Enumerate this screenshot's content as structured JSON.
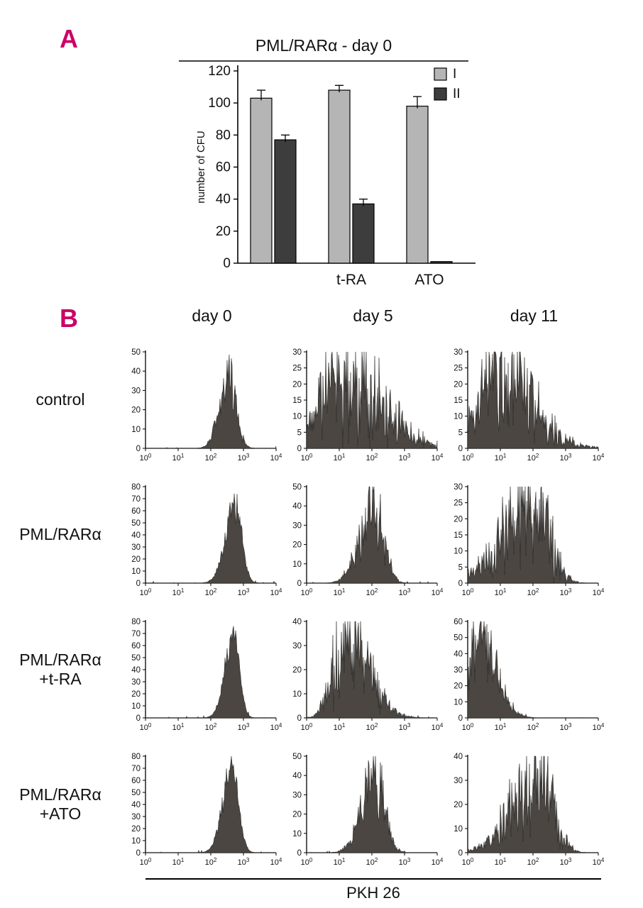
{
  "colors": {
    "panel_label": "#cc0066",
    "histogram": "#4b4641",
    "axis": "#000000"
  },
  "chart_data": [
    {
      "type": "bar",
      "panel_label": "A",
      "title": "PML/RARα - day 0",
      "ylabel": "number of CFU",
      "ylim": [
        0,
        120
      ],
      "ystep": 20,
      "categories": [
        "",
        "t-RA",
        "ATO"
      ],
      "series": [
        {
          "name": "I",
          "color": "#b5b5b5",
          "values": [
            103,
            108,
            98
          ],
          "errors": [
            5,
            3,
            6
          ]
        },
        {
          "name": "II",
          "color": "#3d3d3d",
          "values": [
            77,
            37,
            1
          ],
          "errors": [
            3,
            3,
            0
          ]
        }
      ],
      "legend_position": "top-right",
      "grid": false
    },
    {
      "type": "histogram-grid",
      "panel_label": "B",
      "xlabel": "PKH 26",
      "x_scale": "log10",
      "x_range_log": [
        0,
        4
      ],
      "x_tick_base": "10",
      "x_tick_exponents": [
        0,
        1,
        2,
        3,
        4
      ],
      "col_headers": [
        "day 0",
        "day 5",
        "day 11"
      ],
      "rows": [
        {
          "label_lines": [
            "control"
          ],
          "plots": [
            {
              "ymax": 50,
              "ystep": 10,
              "peak_log": 2.55,
              "sigma_left": 0.28,
              "sigma_right": 0.22,
              "peak_height": 38,
              "noise": 0.25,
              "seed": 11
            },
            {
              "ymax": 30,
              "ystep": 5,
              "peak_log": 0.95,
              "sigma_left": 0.5,
              "sigma_right": 1.25,
              "peak_height": 23,
              "noise": 0.55,
              "seed": 12
            },
            {
              "ymax": 30,
              "ystep": 5,
              "peak_log": 0.9,
              "sigma_left": 0.55,
              "sigma_right": 1.05,
              "peak_height": 23,
              "noise": 0.5,
              "seed": 13
            }
          ]
        },
        {
          "label_lines": [
            "PML/RARα"
          ],
          "plots": [
            {
              "ymax": 80,
              "ystep": 10,
              "peak_log": 2.75,
              "sigma_left": 0.3,
              "sigma_right": 0.2,
              "peak_height": 64,
              "noise": 0.14,
              "seed": 21
            },
            {
              "ymax": 50,
              "ystep": 10,
              "peak_log": 2.05,
              "sigma_left": 0.42,
              "sigma_right": 0.3,
              "peak_height": 40,
              "noise": 0.3,
              "seed": 22
            },
            {
              "ymax": 30,
              "ystep": 5,
              "peak_log": 2.05,
              "sigma_left": 0.95,
              "sigma_right": 0.45,
              "peak_height": 24,
              "noise": 0.55,
              "seed": 23
            }
          ]
        },
        {
          "label_lines": [
            "PML/RARα",
            "+t-RA"
          ],
          "plots": [
            {
              "ymax": 80,
              "ystep": 10,
              "peak_log": 2.7,
              "sigma_left": 0.26,
              "sigma_right": 0.18,
              "peak_height": 70,
              "noise": 0.12,
              "seed": 31
            },
            {
              "ymax": 40,
              "ystep": 10,
              "peak_log": 1.15,
              "sigma_left": 0.35,
              "sigma_right": 0.7,
              "peak_height": 34,
              "noise": 0.45,
              "seed": 32
            },
            {
              "ymax": 60,
              "ystep": 10,
              "peak_log": 0.35,
              "sigma_left": 0.25,
              "sigma_right": 0.5,
              "peak_height": 53,
              "noise": 0.3,
              "seed": 33
            }
          ]
        },
        {
          "label_lines": [
            "PML/RARα",
            "+ATO"
          ],
          "plots": [
            {
              "ymax": 80,
              "ystep": 10,
              "peak_log": 2.65,
              "sigma_left": 0.28,
              "sigma_right": 0.2,
              "peak_height": 70,
              "noise": 0.12,
              "seed": 41
            },
            {
              "ymax": 50,
              "ystep": 10,
              "peak_log": 2.1,
              "sigma_left": 0.4,
              "sigma_right": 0.28,
              "peak_height": 40,
              "noise": 0.3,
              "seed": 42
            },
            {
              "ymax": 40,
              "ystep": 10,
              "peak_log": 2.25,
              "sigma_left": 0.85,
              "sigma_right": 0.4,
              "peak_height": 31,
              "noise": 0.45,
              "seed": 43
            }
          ]
        }
      ]
    }
  ]
}
